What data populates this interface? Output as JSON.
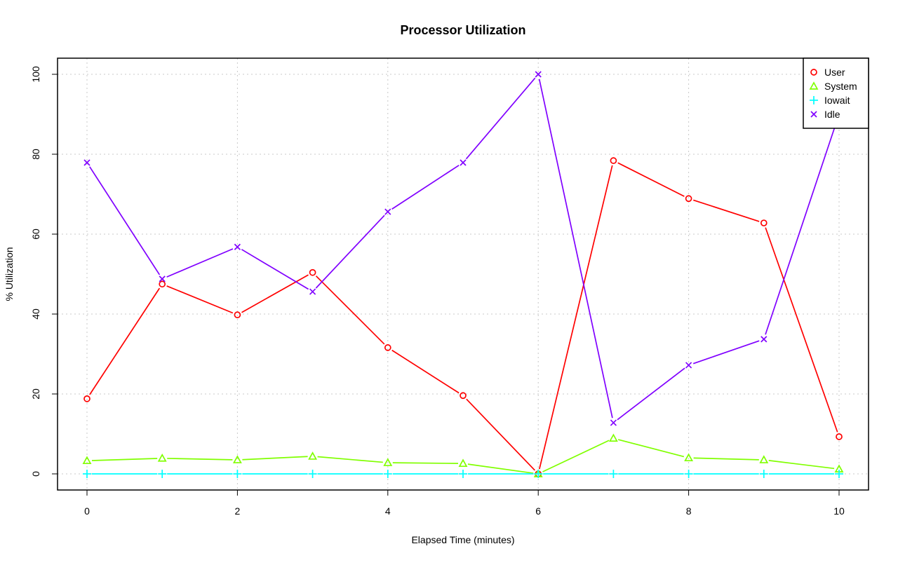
{
  "chart_data": {
    "type": "line",
    "title": "Processor Utilization",
    "xlabel": "Elapsed Time (minutes)",
    "ylabel": "% Utilization",
    "xlim": [
      0,
      10
    ],
    "ylim": [
      0,
      100
    ],
    "grid": true,
    "legend_position": "top-right",
    "x": [
      0,
      1,
      2,
      3,
      4,
      5,
      6,
      7,
      8,
      9,
      10
    ],
    "xticks": [
      "0",
      "2",
      "4",
      "6",
      "8",
      "10"
    ],
    "yticks": [
      "0",
      "20",
      "40",
      "60",
      "80",
      "100"
    ],
    "series": [
      {
        "name": "User",
        "color": "#ff0000",
        "marker": "circle",
        "values": [
          18.8,
          47.5,
          39.8,
          50.4,
          31.6,
          19.6,
          0,
          78.4,
          68.9,
          62.8,
          9.3
        ]
      },
      {
        "name": "System",
        "color": "#80ff00",
        "marker": "triangle",
        "values": [
          3.3,
          3.9,
          3.5,
          4.4,
          2.8,
          2.6,
          0,
          8.9,
          4.0,
          3.5,
          1.2
        ]
      },
      {
        "name": "Iowait",
        "color": "#00ffff",
        "marker": "plus",
        "values": [
          0,
          0,
          0,
          0,
          0,
          0,
          0,
          0,
          0,
          0,
          0
        ]
      },
      {
        "name": "Idle",
        "color": "#8000ff",
        "marker": "cross",
        "values": [
          77.9,
          48.8,
          56.8,
          45.6,
          65.6,
          77.9,
          100,
          12.8,
          27.2,
          33.7,
          90.0
        ]
      }
    ]
  }
}
